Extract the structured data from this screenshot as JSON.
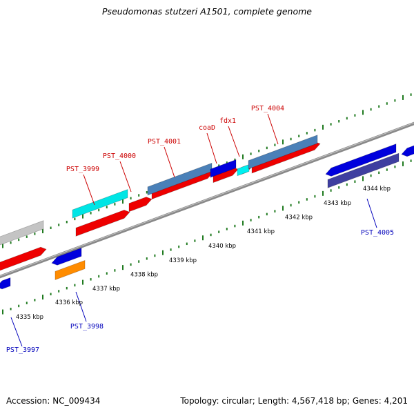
{
  "title": "Pseudomonas stutzeri A1501, complete genome",
  "footer": {
    "accession": "Accession: NC_009434",
    "summary": "Topology: circular; Length: 4,567,418 bp; Genes: 4,201"
  },
  "colors": {
    "backbone": "#8a8a8a",
    "tick": "#1f7a1f",
    "label_forward": "#cc0000",
    "label_reverse": "#0000bb"
  },
  "ruler_labels": [
    "4335 kbp",
    "4336 kbp",
    "4337 kbp",
    "4338 kbp",
    "4339 kbp",
    "4340 kbp",
    "4341 kbp",
    "4342 kbp",
    "4343 kbp",
    "4344 kbp"
  ],
  "gene_labels": {
    "forward": [
      "PST_3999",
      "PST_4000",
      "PST_4001",
      "coaD",
      "fdx1",
      "PST_4004"
    ],
    "reverse": [
      "PST_3997",
      "PST_3998",
      "PST_4005"
    ]
  }
}
